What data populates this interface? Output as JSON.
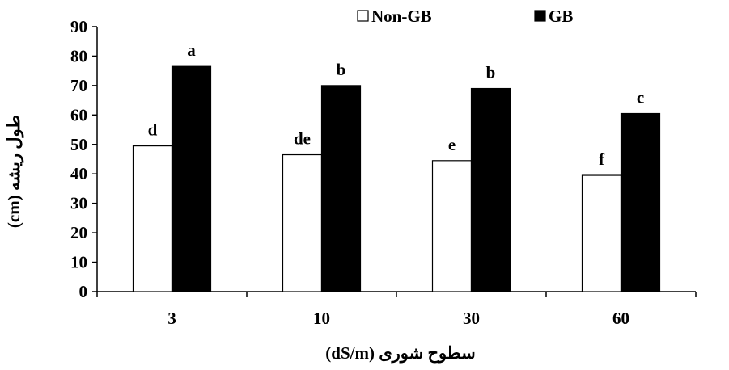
{
  "chart_data": {
    "type": "bar",
    "categories": [
      "3",
      "10",
      "30",
      "60"
    ],
    "series": [
      {
        "name": "Non-GB",
        "values": [
          49.5,
          46.5,
          44.5,
          39.5
        ],
        "labels": [
          "d",
          "de",
          "e",
          "f"
        ],
        "color": "#ffffff"
      },
      {
        "name": "GB",
        "values": [
          76.5,
          70.0,
          69.0,
          60.5
        ],
        "labels": [
          "a",
          "b",
          "b",
          "c"
        ],
        "color": "#000000"
      }
    ],
    "xlabel": "سطوح شوری  (dS/m)",
    "ylabel": "طول ریشه (cm)",
    "ylim": [
      0,
      90
    ],
    "yticks": [
      0,
      10,
      20,
      30,
      40,
      50,
      60,
      70,
      80,
      90
    ],
    "grid": false,
    "legend_position": "top-center"
  }
}
